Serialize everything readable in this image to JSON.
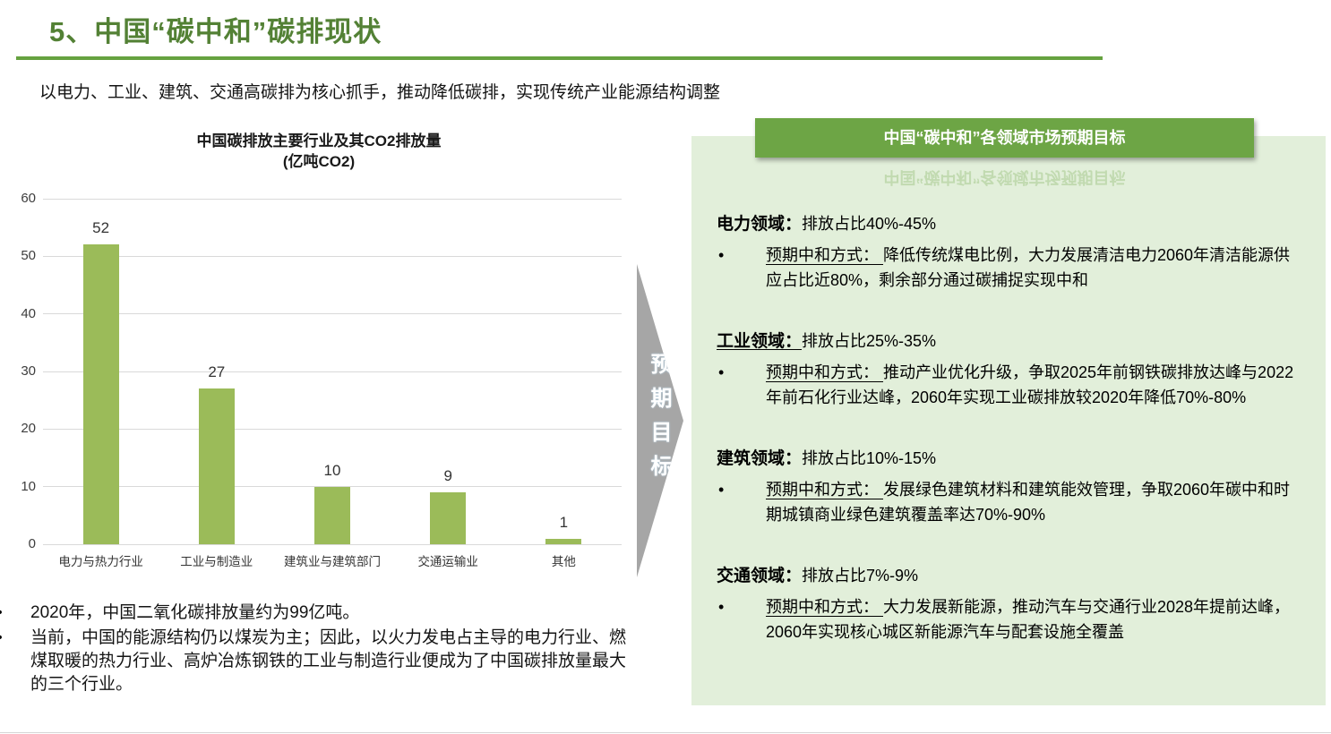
{
  "slide": {
    "title": "5、中国“碳中和”碳排现状",
    "subtitle": "以电力、工业、建筑、交通高碳排为核心抓手，推动降低碳排，实现传统产业能源结构调整"
  },
  "chart_data": {
    "type": "bar",
    "title": "中国碳排放主要行业及其CO2排放量 (亿吨CO2)",
    "title_line1": "中国碳排放主要行业及其CO2排放量",
    "title_line2": "(亿吨CO2)",
    "categories": [
      "电力与热力行业",
      "工业与制造业",
      "建筑业与建筑部门",
      "交通运输业",
      "其他"
    ],
    "values": [
      52,
      27,
      10,
      9,
      1
    ],
    "xlabel": "",
    "ylabel": "",
    "ylim": [
      0,
      60
    ],
    "ytick_step": 10,
    "grid": true,
    "legend": "none",
    "bar_color": "#9bbb59"
  },
  "arrow": {
    "label": "预期目标",
    "color": "#a6a6a6"
  },
  "panel": {
    "header": "中国“碳中和”各领域市场预期目标",
    "background": "#e2efda",
    "header_background": "#6da545",
    "sections": [
      {
        "title": "电力领域：",
        "title_underline": false,
        "ratio": "排放占比40%-45%",
        "bullet_label": "预期中和方式： ",
        "bullet_text": "降低传统煤电比例，大力发展清洁电力2060年清洁能源供应占比近80%，剩余部分通过碳捕捉实现中和"
      },
      {
        "title": "工业领域：",
        "title_underline": true,
        "ratio": "排放占比25%-35%",
        "bullet_label": "预期中和方式： ",
        "bullet_text": "推动产业优化升级，争取2025年前钢铁碳排放达峰与2022年前石化行业达峰，2060年实现工业碳排放较2020年降低70%-80%"
      },
      {
        "title": "建筑领域：",
        "title_underline": false,
        "ratio": "排放占比10%-15%",
        "bullet_label": "预期中和方式： ",
        "bullet_text": "发展绿色建筑材料和建筑能效管理，争取2060年碳中和时期城镇商业绿色建筑覆盖率达70%-90%"
      },
      {
        "title": "交通领域：",
        "title_underline": false,
        "ratio": "排放占比7%-9%",
        "bullet_label": "预期中和方式： ",
        "bullet_text": "大力发展新能源，推动汽车与交通行业2028年提前达峰，2060年实现核心城区新能源汽车与配套设施全覆盖"
      }
    ]
  },
  "notes": {
    "items": [
      "2020年，中国二氧化碳排放量约为99亿吨。",
      "当前，中国的能源结构仍以煤炭为主；因此，以火力发电占主导的电力行业、燃煤取暖的热力行业、高炉冶炼钢铁的工业与制造行业便成为了中国碳排放量最大的三个行业。"
    ]
  },
  "colors": {
    "title_green": "#538135",
    "divider_green": "#66a23f",
    "bar_green": "#9bbb59",
    "panel_bg": "#e2efda",
    "banner_green": "#6da545",
    "arrow_gray": "#a6a6a6",
    "gridline_gray": "#d9d9d9"
  }
}
